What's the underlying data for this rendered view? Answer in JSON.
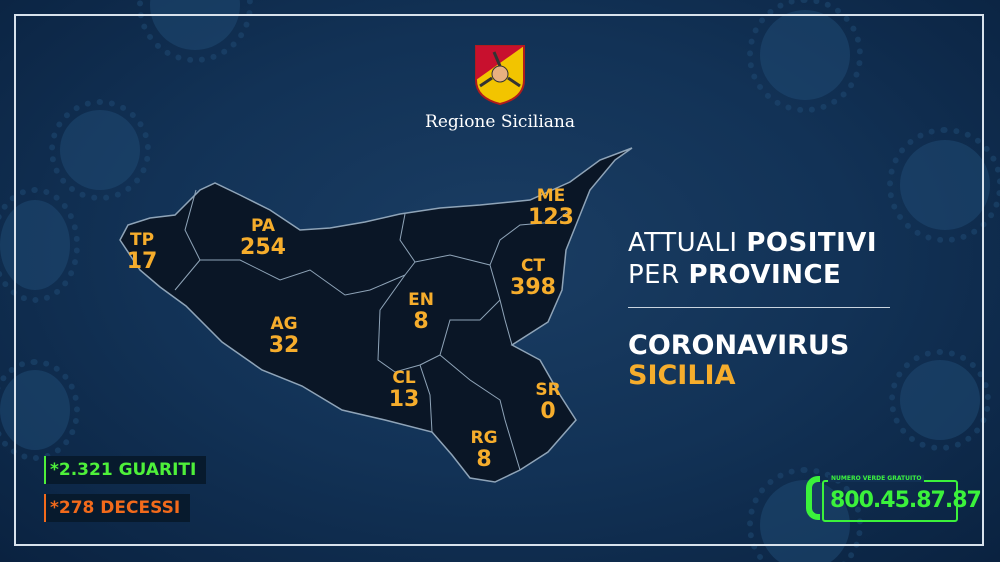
{
  "header": {
    "logo_text": "Regione Siciliana"
  },
  "provinces": [
    {
      "code": "TP",
      "value": "17"
    },
    {
      "code": "PA",
      "value": "254"
    },
    {
      "code": "ME",
      "value": "123"
    },
    {
      "code": "CT",
      "value": "398"
    },
    {
      "code": "EN",
      "value": "8"
    },
    {
      "code": "AG",
      "value": "32"
    },
    {
      "code": "CL",
      "value": "13"
    },
    {
      "code": "SR",
      "value": "0"
    },
    {
      "code": "RG",
      "value": "8"
    }
  ],
  "title": {
    "line1_light": "ATTUALI ",
    "line1_bold": "POSITIVI",
    "line2_light": "PER ",
    "line2_bold": "PROVINCE"
  },
  "subtitle": {
    "line1": "CORONAVIRUS",
    "line2": "SICILIA"
  },
  "stats": {
    "recovered": "*2.321 GUARITI",
    "deaths": "*278 DECESSI"
  },
  "hotline": {
    "label": "NUMERO VERDE GRATUITO",
    "number": "800.45.87.87"
  },
  "colors": {
    "accent": "#f6ad2c",
    "recovered": "#4ef03a",
    "deaths": "#f26a1b",
    "hotline": "#3bf23b",
    "background": "#123256"
  }
}
